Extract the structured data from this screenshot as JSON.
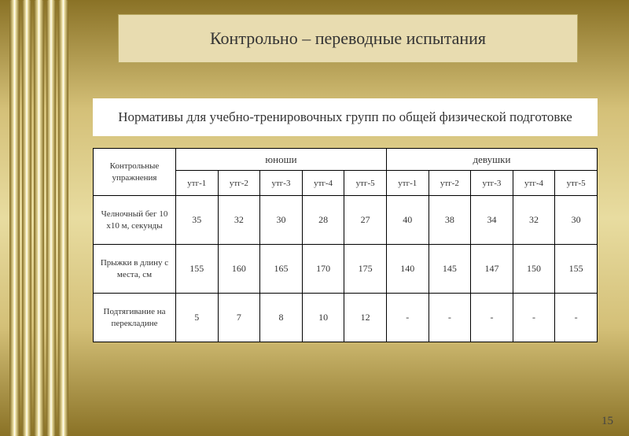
{
  "title": "Контрольно – переводные испытания",
  "subtitle": "Нормативы для учебно-тренировочных групп  по общей физической подготовке",
  "page_number": "15",
  "table": {
    "corner_label": "Контрольные упражнения",
    "group_headers": [
      "юноши",
      "девушки"
    ],
    "sub_headers_boys": [
      "утг-1",
      "утг-2",
      "утг-3",
      "утг-4",
      "утг-5"
    ],
    "sub_headers_girls": [
      "утг-1",
      "утг-2",
      "утг-3",
      "утг-4",
      "утг-5"
    ],
    "rows": [
      {
        "label": "Челночный бег 10 х10 м, секунды",
        "cells": [
          "35",
          "32",
          "30",
          "28",
          "27",
          "40",
          "38",
          "34",
          "32",
          "30"
        ]
      },
      {
        "label": "Прыжки в длину с места,  см",
        "cells": [
          "155",
          "160",
          "165",
          "170",
          "175",
          "140",
          "145",
          "147",
          "150",
          "155"
        ]
      },
      {
        "label": "Подтягивание на перекладине",
        "cells": [
          "5",
          "7",
          "8",
          "10",
          "12",
          "-",
          "-",
          "-",
          "-",
          "-"
        ]
      }
    ]
  },
  "colors": {
    "title_bg": "#e8dcb0",
    "title_border": "#b8a860",
    "table_bg": "#ffffff",
    "text": "#333333",
    "border": "#000000"
  }
}
